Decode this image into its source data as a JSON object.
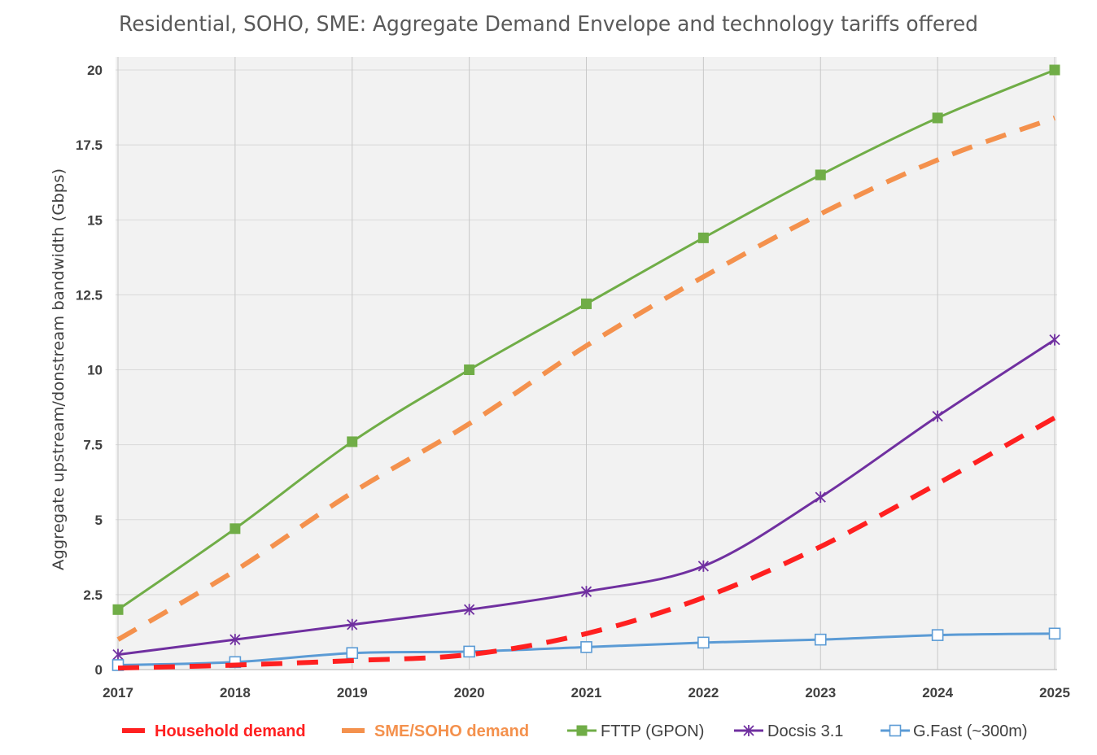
{
  "chart_data": {
    "type": "line",
    "title": "Residential, SOHO, SME: Aggregate Demand Envelope and technology tariffs offered",
    "xlabel": "",
    "ylabel": "Aggregate upstream/donstream bandwidth  (Gbps)",
    "x": [
      "2017",
      "2018",
      "2019",
      "2020",
      "2021",
      "2022",
      "2023",
      "2024",
      "2025"
    ],
    "ylim": [
      0,
      20
    ],
    "yticks": [
      "0",
      "2.5",
      "5",
      "7.5",
      "10",
      "12.5",
      "15",
      "17.5",
      "20"
    ],
    "grid": true,
    "legend_position": "bottom",
    "series": [
      {
        "name": "Household demand",
        "color": "#ff2020",
        "style": "dashed-bold",
        "marker": "none",
        "values": [
          0.05,
          0.15,
          0.3,
          0.5,
          1.2,
          2.4,
          4.1,
          6.2,
          8.4
        ]
      },
      {
        "name": "SME/SOHO demand",
        "color": "#f4914d",
        "style": "dashed-bold",
        "marker": "none",
        "values": [
          1.0,
          3.3,
          5.9,
          8.2,
          10.8,
          13.1,
          15.2,
          17.0,
          18.4
        ]
      },
      {
        "name": "FTTP (GPON)",
        "color": "#70ad47",
        "style": "solid",
        "marker": "filled-square",
        "values": [
          2.0,
          4.7,
          7.6,
          10.0,
          12.2,
          14.4,
          16.5,
          18.4,
          20.0
        ]
      },
      {
        "name": "Docsis 3.1",
        "color": "#7030a0",
        "style": "solid",
        "marker": "asterisk",
        "values": [
          0.5,
          1.0,
          1.5,
          2.0,
          2.6,
          3.45,
          5.75,
          8.45,
          11.0
        ]
      },
      {
        "name": "G.Fast (~300m)",
        "color": "#5b9bd5",
        "style": "solid",
        "marker": "open-square",
        "values": [
          0.15,
          0.25,
          0.55,
          0.6,
          0.75,
          0.9,
          1.0,
          1.15,
          1.2
        ]
      }
    ]
  }
}
